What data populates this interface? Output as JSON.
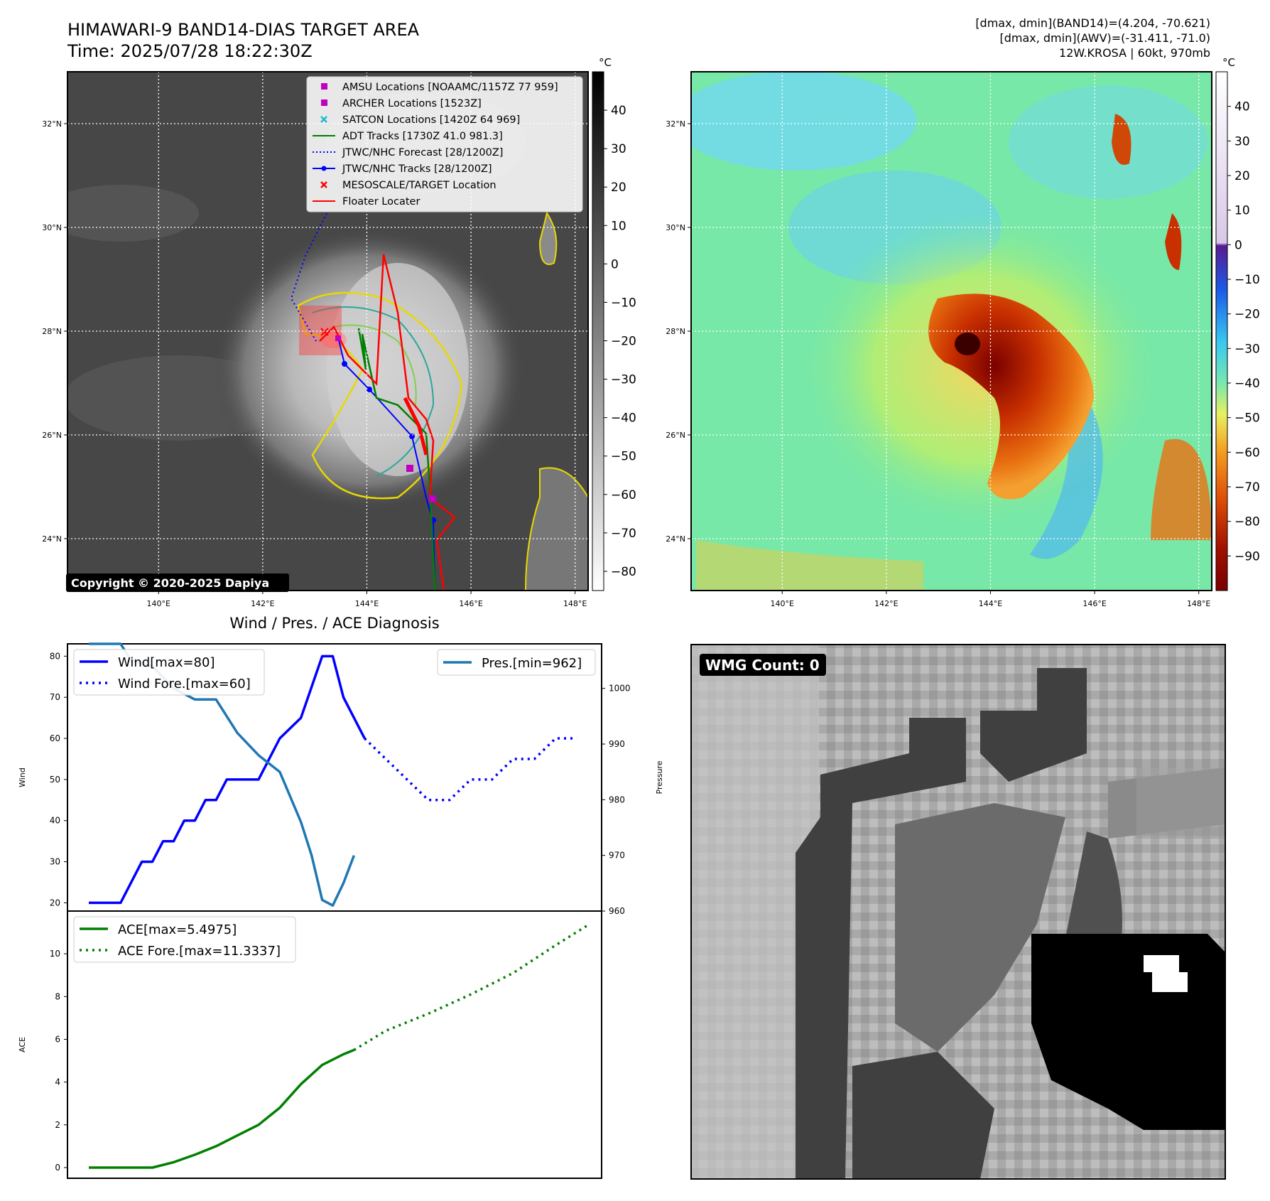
{
  "header": {
    "title": "HIMAWARI-9 BAND14-DIAS TARGET AREA",
    "time": "Time: 2025/07/28 18:22:30Z",
    "stats": [
      "[dmax, dmin](BAND14)=(4.204, -70.621)",
      "[dmax, dmin](AWV)=(-31.411, -71.0)",
      "12W.KROSA | 60kt, 970mb"
    ]
  },
  "maps": {
    "lat_ticks": [
      "24°N",
      "26°N",
      "28°N",
      "30°N",
      "32°N"
    ],
    "lon_ticks": [
      "140°E",
      "142°E",
      "144°E",
      "146°E",
      "148°E"
    ],
    "lat_values": [
      24,
      26,
      28,
      30,
      32
    ],
    "lon_values": [
      140,
      142,
      144,
      146,
      148
    ],
    "lat_range": [
      23,
      33
    ],
    "lon_range": [
      138.25,
      148.25
    ],
    "copyright": "Copyright © 2020-2025 Dapiya",
    "colorbar_unit": "°C",
    "gray_colorbar_ticks": [
      40,
      30,
      20,
      10,
      0,
      -10,
      -20,
      -30,
      -40,
      -50,
      -60,
      -70,
      -80
    ],
    "gray_colorbar_labels": [
      "40",
      "30",
      "20",
      "10",
      "0",
      "−10",
      "−20",
      "−30",
      "−40",
      "−50",
      "−60",
      "−70",
      "−80"
    ],
    "gray_colorbar_range": [
      -85,
      50
    ],
    "color_colorbar_ticks": [
      40,
      30,
      20,
      10,
      0,
      -10,
      -20,
      -30,
      -40,
      -50,
      -60,
      -70,
      -80,
      -90
    ],
    "color_colorbar_labels": [
      "40",
      "30",
      "20",
      "10",
      "0",
      "−10",
      "−20",
      "−30",
      "−40",
      "−50",
      "−60",
      "−70",
      "−80",
      "−90"
    ],
    "color_colorbar_range": [
      -100,
      50
    ],
    "legend": [
      {
        "label": "AMSU Locations [NOAAMC/1157Z 77 959]",
        "marker": "square",
        "color": "#c000c0"
      },
      {
        "label": "ARCHER Locations [1523Z]",
        "marker": "square",
        "color": "#c000c0"
      },
      {
        "label": "SATCON Locations [1420Z 64 969]",
        "marker": "x",
        "color": "#17becf"
      },
      {
        "label": "ADT Tracks [1730Z 41.0 981.3]",
        "marker": "line",
        "color": "#008000"
      },
      {
        "label": "JTWC/NHC Forecast [28/1200Z]",
        "marker": "dotted",
        "color": "#0000ff"
      },
      {
        "label": "JTWC/NHC Tracks [28/1200Z]",
        "marker": "line-dot",
        "color": "#0000ff"
      },
      {
        "label": "MESOSCALE/TARGET Location",
        "marker": "x",
        "color": "#ff0000"
      },
      {
        "label": "Floater Locater",
        "marker": "line",
        "color": "#ff0000"
      }
    ]
  },
  "chart_data": [
    {
      "type": "line",
      "title": "Wind / Pres. / ACE Diagnosis",
      "ylabel": "Wind",
      "ylabel_right": "Pressure",
      "ylim": [
        18,
        83
      ],
      "ylim_right": [
        960,
        1008
      ],
      "yticks": [
        20,
        30,
        40,
        50,
        60,
        70,
        80
      ],
      "yticks_right": [
        960,
        970,
        980,
        990,
        1000
      ],
      "xlim": [
        0,
        23.5
      ],
      "series": [
        {
          "name": "Wind[max=80]",
          "color": "#0000ff",
          "style": "solid",
          "x": [
            0,
            1.5,
            2.5,
            3,
            3.5,
            4,
            4.5,
            5,
            5.5,
            6,
            6.5,
            7,
            7.5,
            8,
            9,
            10,
            11,
            11.5,
            12,
            13
          ],
          "y": [
            20,
            20,
            30,
            30,
            35,
            35,
            40,
            40,
            45,
            45,
            50,
            50,
            50,
            50,
            60,
            65,
            80,
            80,
            70,
            60
          ]
        },
        {
          "name": "Wind Fore.[max=60]",
          "color": "#0000ff",
          "style": "dotted",
          "x": [
            13,
            14,
            15,
            16,
            17,
            18,
            19,
            20,
            21,
            22,
            23
          ],
          "y": [
            60,
            55,
            50,
            45,
            45,
            50,
            50,
            55,
            55,
            60,
            60
          ]
        },
        {
          "name": "Pres.[min=962]",
          "color": "#1f77b4",
          "style": "solid",
          "axis": "right",
          "x": [
            0,
            1.5,
            2,
            3,
            4,
            5,
            6,
            7,
            8,
            9,
            10,
            10.5,
            11,
            11.5,
            12,
            12.5
          ],
          "y": [
            1008,
            1008,
            1005,
            1004,
            1000,
            998,
            998,
            992,
            988,
            985,
            976,
            970,
            962,
            961,
            965,
            970
          ]
        }
      ]
    },
    {
      "type": "line",
      "ylabel": "ACE",
      "ylim": [
        -0.5,
        12
      ],
      "yticks": [
        0,
        2,
        4,
        6,
        8,
        10
      ],
      "xlim": [
        0,
        23.5
      ],
      "series": [
        {
          "name": "ACE[max=5.4975]",
          "color": "#008000",
          "style": "solid",
          "x": [
            0,
            3,
            4,
            5,
            6,
            7,
            8,
            9,
            10,
            11,
            12,
            12.5
          ],
          "y": [
            0,
            0,
            0.25,
            0.6,
            1.0,
            1.5,
            2.0,
            2.8,
            3.9,
            4.8,
            5.3,
            5.5
          ]
        },
        {
          "name": "ACE Fore.[max=11.3337]",
          "color": "#008000",
          "style": "dotted",
          "x": [
            12.5,
            14,
            16,
            18,
            20,
            22,
            23.5
          ],
          "y": [
            5.5,
            6.4,
            7.2,
            8.1,
            9.1,
            10.4,
            11.33
          ]
        }
      ]
    }
  ],
  "wmg": {
    "label": "WMG Count: 0"
  }
}
